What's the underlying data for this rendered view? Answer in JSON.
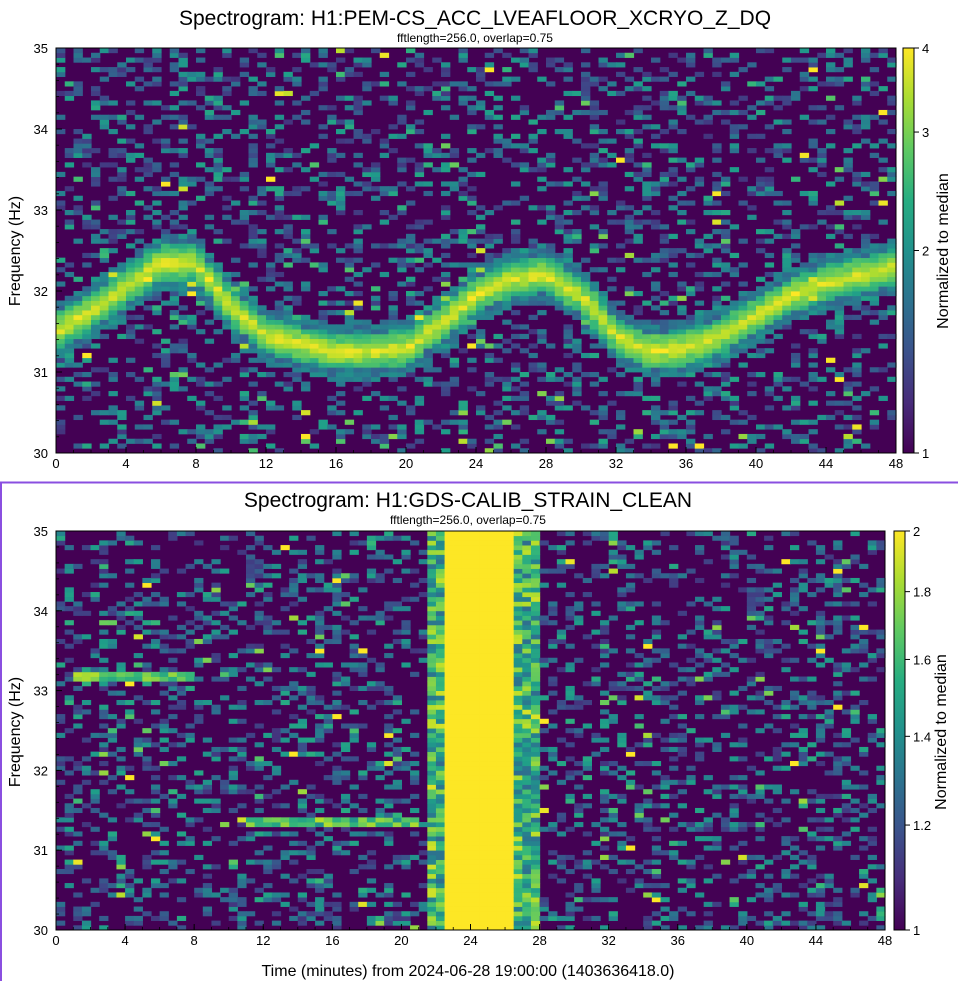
{
  "chart_data": [
    {
      "type": "heatmap",
      "title": "Spectrogram: H1:PEM-CS_ACC_LVEAFLOOR_XCRYO_Z_DQ",
      "subtitle": "fftlength=256.0, overlap=0.75",
      "xlabel": "",
      "ylabel": "Frequency (Hz)",
      "colorbar_label": "Normalized to median",
      "colormap": "viridis",
      "colorbar_scale": "log",
      "xlim": [
        0,
        48
      ],
      "ylim": [
        30,
        35
      ],
      "x_ticks": [
        "0",
        "4",
        "8",
        "12",
        "16",
        "20",
        "24",
        "28",
        "32",
        "36",
        "40",
        "44",
        "48"
      ],
      "y_ticks": [
        "30",
        "31",
        "32",
        "33",
        "34",
        "35"
      ],
      "colorbar_range": [
        1,
        4
      ],
      "colorbar_ticks": [
        "1",
        "2",
        "3",
        "4"
      ],
      "features": [
        {
          "name": "wandering line",
          "time_min": [
            0,
            2,
            4,
            6,
            8,
            10,
            12,
            14,
            16,
            18,
            20,
            22,
            24,
            26,
            28,
            30,
            32,
            34,
            36,
            38,
            40,
            42,
            44,
            46,
            48
          ],
          "freq_hz": [
            31.5,
            31.75,
            32.05,
            32.35,
            32.35,
            31.8,
            31.45,
            31.35,
            31.25,
            31.25,
            31.3,
            31.6,
            31.95,
            32.15,
            32.2,
            31.95,
            31.45,
            31.25,
            31.3,
            31.45,
            31.7,
            31.95,
            32.1,
            32.2,
            32.3
          ]
        }
      ]
    },
    {
      "type": "heatmap",
      "title": "Spectrogram: H1:GDS-CALIB_STRAIN_CLEAN",
      "subtitle": "fftlength=256.0, overlap=0.75",
      "xlabel": "Time (minutes) from 2024-06-28 19:00:00 (1403636418.0)",
      "ylabel": "Frequency (Hz)",
      "colorbar_label": "Normalized to median",
      "colormap": "viridis",
      "colorbar_scale": "log",
      "xlim": [
        0,
        48
      ],
      "ylim": [
        30,
        35
      ],
      "x_ticks": [
        "0",
        "4",
        "8",
        "12",
        "16",
        "20",
        "24",
        "28",
        "32",
        "36",
        "40",
        "44",
        "48"
      ],
      "y_ticks": [
        "30",
        "31",
        "32",
        "33",
        "34",
        "35"
      ],
      "colorbar_range": [
        1,
        2
      ],
      "colorbar_ticks": [
        "1",
        "1.2",
        "1.4",
        "1.6",
        "1.8",
        "2"
      ],
      "features": [
        {
          "name": "broadband excess",
          "time_min": [
            21.5,
            27.8
          ],
          "saturated_min": [
            22.5,
            26.7
          ]
        }
      ]
    }
  ]
}
